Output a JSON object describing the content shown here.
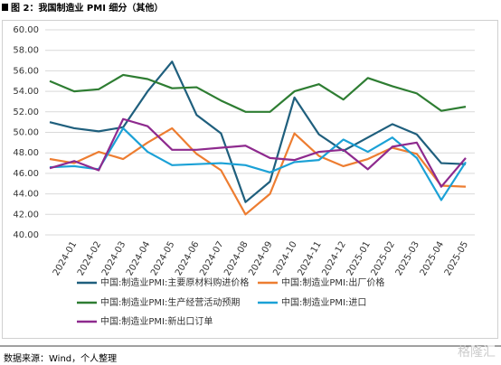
{
  "title": "图 2：我国制造业 PMI 细分（其他）",
  "source": "数据来源：Wind，个人整理",
  "watermark": "格隆汇",
  "chart_data": {
    "type": "line",
    "categories": [
      null,
      "2024-01",
      "2024-02",
      "2024-03",
      "2024-04",
      "2024-05",
      "2024-06",
      "2024-07",
      "2024-08",
      "2024-09",
      "2024-10",
      "2024-11",
      "2024-12",
      "2025-01",
      "2025-02",
      "2025-03",
      "2025-04",
      "2025-05"
    ],
    "series": [
      {
        "name": "中国:制造业PMI:主要原材料购进价格",
        "color": "#1f5f7d",
        "values": [
          51.0,
          50.4,
          50.1,
          50.5,
          54.0,
          56.9,
          51.7,
          49.9,
          43.2,
          45.2,
          53.4,
          49.8,
          48.2,
          49.5,
          50.8,
          49.8,
          47.0,
          46.9
        ]
      },
      {
        "name": "中国:制造业PMI:出厂价格",
        "color": "#ed7d31",
        "values": [
          47.4,
          47.0,
          48.1,
          47.4,
          49.0,
          50.4,
          47.9,
          46.3,
          42.0,
          44.0,
          49.9,
          47.7,
          46.7,
          47.4,
          48.5,
          47.9,
          44.8,
          44.7
        ]
      },
      {
        "name": "中国:制造业PMI:生产经营活动预期",
        "color": "#2e7d32",
        "values": [
          55.0,
          54.0,
          54.2,
          55.6,
          55.2,
          54.3,
          54.4,
          53.1,
          52.0,
          52.0,
          54.0,
          54.7,
          53.2,
          55.3,
          54.5,
          53.8,
          52.1,
          52.5
        ]
      },
      {
        "name": "中国:制造业PMI:进口",
        "color": "#1ba1d6",
        "values": [
          46.6,
          46.7,
          46.4,
          50.4,
          48.1,
          46.8,
          46.9,
          47.0,
          46.8,
          46.1,
          47.1,
          47.3,
          49.3,
          48.1,
          49.5,
          47.5,
          43.4,
          47.1
        ]
      },
      {
        "name": "中国:制造业PMI:新出口订单",
        "color": "#8e2a8e",
        "values": [
          46.5,
          47.2,
          46.3,
          51.3,
          50.6,
          48.3,
          48.3,
          48.5,
          48.7,
          47.5,
          47.3,
          48.1,
          48.3,
          46.4,
          48.6,
          49.0,
          44.7,
          47.5
        ]
      }
    ],
    "ylim": [
      40,
      60
    ],
    "yticks": [
      {
        "value": 40,
        "label": "40.00"
      },
      {
        "value": 42,
        "label": "42.00"
      },
      {
        "value": 44,
        "label": "44.00"
      },
      {
        "value": 46,
        "label": "46.00"
      },
      {
        "value": 48,
        "label": "48.00"
      },
      {
        "value": 50,
        "label": "50.00"
      },
      {
        "value": 52,
        "label": "52.00"
      },
      {
        "value": 54,
        "label": "54.00"
      },
      {
        "value": 56,
        "label": "56.00"
      },
      {
        "value": 58,
        "label": "58.00"
      },
      {
        "value": 60,
        "label": "60.00"
      }
    ],
    "grid": true
  }
}
